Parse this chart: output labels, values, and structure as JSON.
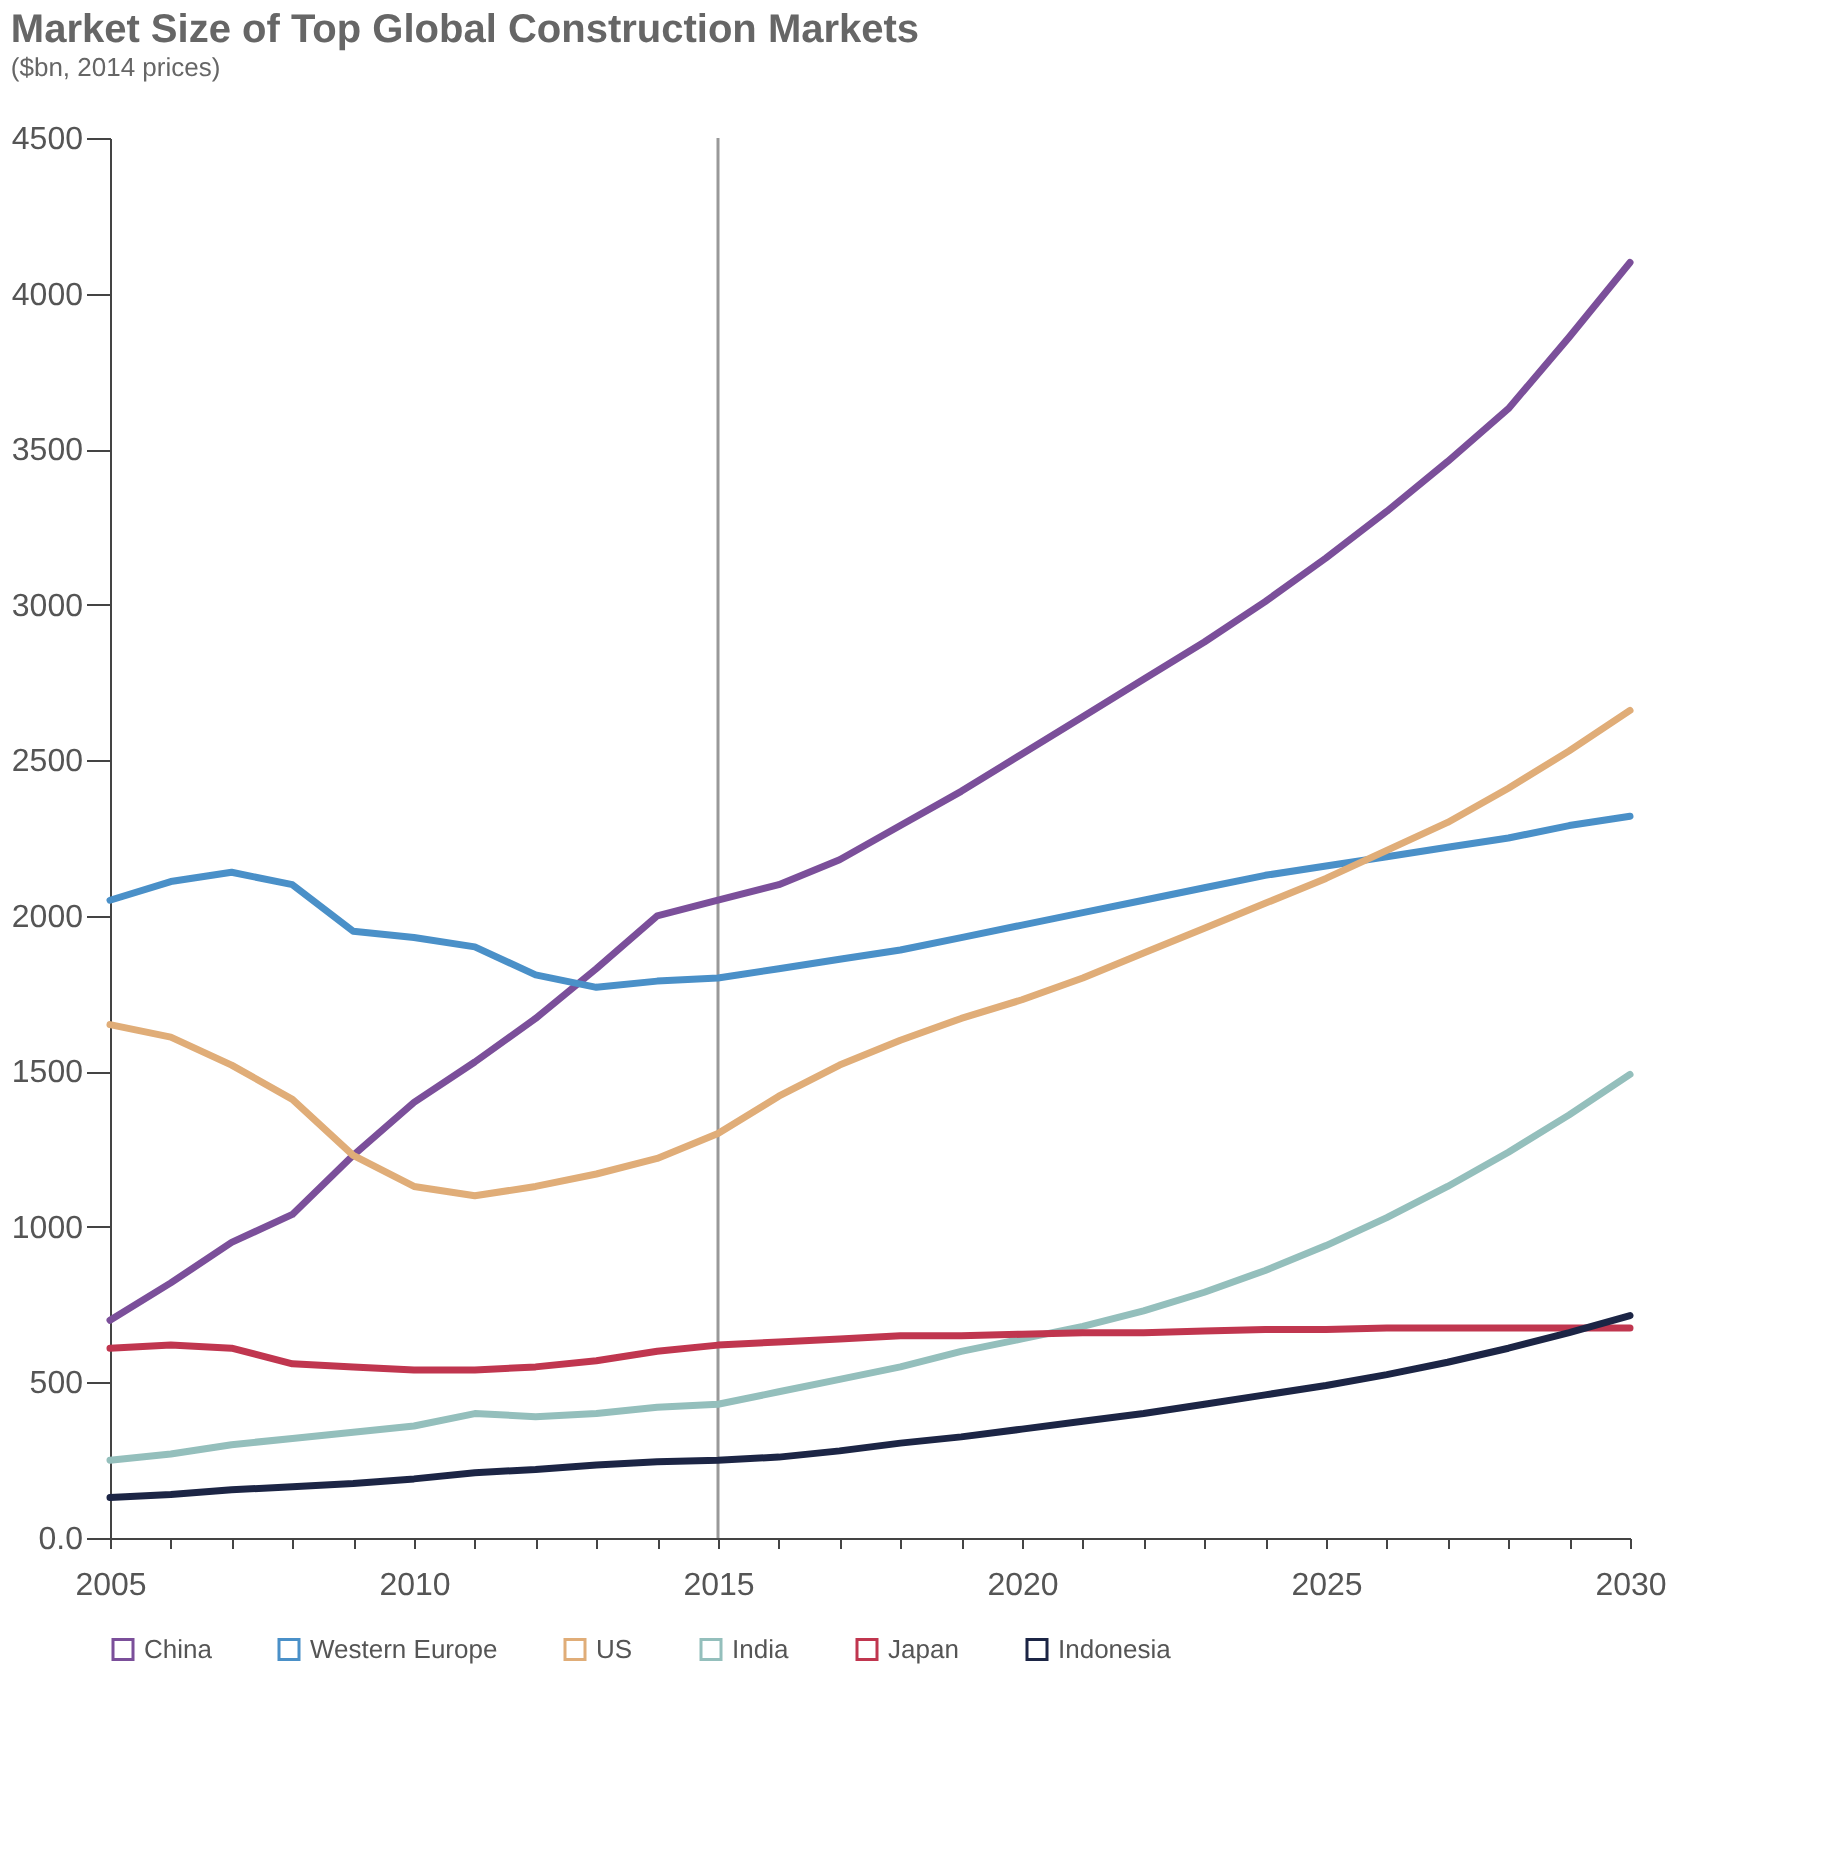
{
  "chart_data": {
    "type": "line",
    "title": "Market Size of Top Global Construction Markets",
    "subtitle": "($bn, 2014 prices)",
    "x": [
      2005,
      2006,
      2007,
      2008,
      2009,
      2010,
      2011,
      2012,
      2013,
      2014,
      2015,
      2016,
      2017,
      2018,
      2019,
      2020,
      2021,
      2022,
      2023,
      2024,
      2025,
      2026,
      2027,
      2028,
      2029,
      2030
    ],
    "series": [
      {
        "name": "China",
        "color": "#7b4f9a",
        "values": [
          700,
          820,
          950,
          1040,
          1230,
          1400,
          1530,
          1670,
          1830,
          2000,
          2050,
          2100,
          2180,
          2290,
          2400,
          2520,
          2640,
          2760,
          2880,
          3010,
          3150,
          3300,
          3460,
          3630,
          3860,
          4100
        ]
      },
      {
        "name": "Western Europe",
        "color": "#4a90c8",
        "values": [
          2050,
          2110,
          2140,
          2100,
          1950,
          1930,
          1900,
          1810,
          1770,
          1790,
          1800,
          1830,
          1860,
          1890,
          1930,
          1970,
          2010,
          2050,
          2090,
          2130,
          2160,
          2190,
          2220,
          2250,
          2290,
          2320
        ]
      },
      {
        "name": "US",
        "color": "#e0ad78",
        "values": [
          1650,
          1610,
          1520,
          1410,
          1230,
          1130,
          1100,
          1130,
          1170,
          1220,
          1300,
          1420,
          1520,
          1600,
          1670,
          1730,
          1800,
          1880,
          1960,
          2040,
          2120,
          2210,
          2300,
          2410,
          2530,
          2660
        ]
      },
      {
        "name": "India",
        "color": "#94bfbc",
        "values": [
          250,
          270,
          300,
          320,
          340,
          360,
          400,
          390,
          400,
          420,
          430,
          470,
          510,
          550,
          600,
          640,
          680,
          730,
          790,
          860,
          940,
          1030,
          1130,
          1240,
          1360,
          1490
        ]
      },
      {
        "name": "Japan",
        "color": "#c0364f",
        "values": [
          610,
          620,
          610,
          560,
          550,
          540,
          540,
          550,
          570,
          600,
          620,
          630,
          640,
          650,
          650,
          655,
          660,
          660,
          665,
          670,
          670,
          675,
          675,
          675,
          675,
          675
        ]
      },
      {
        "name": "Indonesia",
        "color": "#1c2545",
        "values": [
          130,
          140,
          155,
          165,
          175,
          190,
          210,
          220,
          235,
          245,
          250,
          260,
          280,
          305,
          325,
          350,
          375,
          400,
          430,
          460,
          490,
          525,
          565,
          610,
          660,
          715
        ]
      }
    ],
    "xlim": [
      2005,
      2030
    ],
    "xticks": [
      2005,
      {
        "value": 2006,
        "label": null
      },
      {
        "value": 2007,
        "label": null
      },
      {
        "value": 2008,
        "label": null
      },
      {
        "value": 2009,
        "label": null
      },
      2010,
      {
        "value": 2011,
        "label": null
      },
      {
        "value": 2012,
        "label": null
      },
      {
        "value": 2013,
        "label": null
      },
      {
        "value": 2014,
        "label": null
      },
      2015,
      {
        "value": 2016,
        "label": null
      },
      {
        "value": 2017,
        "label": null
      },
      {
        "value": 2018,
        "label": null
      },
      {
        "value": 2019,
        "label": null
      },
      2020,
      {
        "value": 2021,
        "label": null
      },
      {
        "value": 2022,
        "label": null
      },
      {
        "value": 2023,
        "label": null
      },
      {
        "value": 2024,
        "label": null
      },
      2025,
      {
        "value": 2026,
        "label": null
      },
      {
        "value": 2027,
        "label": null
      },
      {
        "value": 2028,
        "label": null
      },
      {
        "value": 2029,
        "label": null
      },
      2030
    ],
    "ylim": [
      0,
      4500
    ],
    "yticks": [
      {
        "value": 0,
        "label": "0.0"
      },
      500,
      1000,
      1500,
      2000,
      2500,
      3000,
      3500,
      4000,
      4500
    ],
    "ref_lines": [
      {
        "axis": "x",
        "value": 2015,
        "color": "#999999"
      }
    ],
    "grid": false,
    "legend": "bottom",
    "line_style": "solid",
    "marker": "none"
  }
}
